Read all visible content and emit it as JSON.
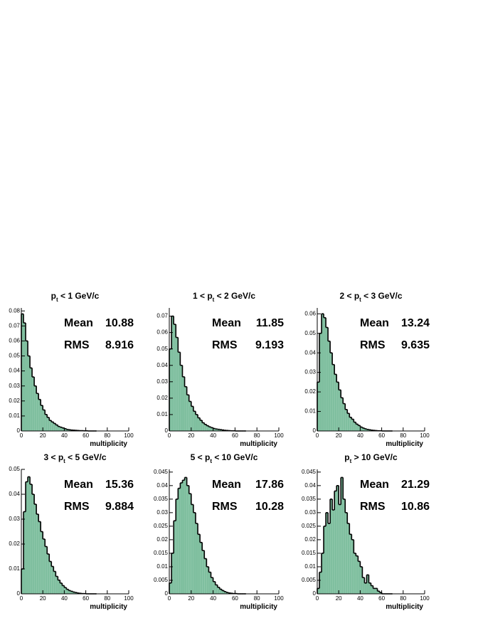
{
  "chart_data": [
    {
      "type": "histogram",
      "title": {
        "before": "p",
        "sub": "t",
        "after": " < 1 GeV/c"
      },
      "xlabel": "multiplicity",
      "stats": [
        {
          "label": "Mean",
          "value": 10.88
        },
        {
          "label": "RMS",
          "value": 8.916
        }
      ],
      "bins": [
        0,
        2,
        4,
        6,
        8,
        10,
        12,
        14,
        16,
        18,
        20,
        22,
        24,
        26,
        28,
        30,
        32,
        34,
        36,
        38,
        40,
        42,
        44,
        46,
        48,
        50,
        52,
        54,
        56,
        58,
        60,
        62,
        64,
        66,
        68,
        70
      ],
      "values": [
        0.078,
        0.072,
        0.06,
        0.05,
        0.042,
        0.036,
        0.03,
        0.025,
        0.021,
        0.017,
        0.014,
        0.011,
        0.009,
        0.007,
        0.006,
        0.005,
        0.004,
        0.003,
        0.0025,
        0.002,
        0.0015,
        0.001,
        0.0008,
        0.0006,
        0.0005,
        0.0004,
        0.0003,
        0.0002,
        0.0002,
        0.0001,
        0.0001,
        0,
        0,
        0,
        0
      ],
      "color": "#7fbf9f",
      "xlim": [
        0,
        100
      ],
      "xticks": [
        0,
        20,
        40,
        60,
        80,
        100
      ],
      "ylim": [
        0,
        0.082
      ],
      "yticks": [
        0,
        0.01,
        0.02,
        0.03,
        0.04,
        0.05,
        0.06,
        0.07,
        0.08
      ]
    },
    {
      "type": "histogram",
      "title": {
        "before": "1 < p",
        "sub": "t",
        "after": " < 2 GeV/c"
      },
      "xlabel": "multiplicity",
      "stats": [
        {
          "label": "Mean",
          "value": 11.85
        },
        {
          "label": "RMS",
          "value": 9.193
        }
      ],
      "bins": [
        0,
        2,
        4,
        6,
        8,
        10,
        12,
        14,
        16,
        18,
        20,
        22,
        24,
        26,
        28,
        30,
        32,
        34,
        36,
        38,
        40,
        42,
        44,
        46,
        48,
        50,
        52,
        54,
        56,
        58,
        60,
        62,
        64,
        66,
        68,
        70
      ],
      "values": [
        0.05,
        0.07,
        0.065,
        0.057,
        0.048,
        0.04,
        0.033,
        0.027,
        0.022,
        0.018,
        0.015,
        0.012,
        0.01,
        0.008,
        0.0065,
        0.005,
        0.004,
        0.0032,
        0.0025,
        0.002,
        0.0015,
        0.0012,
        0.001,
        0.0008,
        0.0006,
        0.0004,
        0.0003,
        0.0002,
        0.0001,
        0.0001,
        0,
        0,
        0,
        0,
        0
      ],
      "color": "#7fbf9f",
      "xlim": [
        0,
        100
      ],
      "xticks": [
        0,
        20,
        40,
        60,
        80,
        100
      ],
      "ylim": [
        0,
        0.075
      ],
      "yticks": [
        0,
        0.01,
        0.02,
        0.03,
        0.04,
        0.05,
        0.06,
        0.07
      ]
    },
    {
      "type": "histogram",
      "title": {
        "before": "2 < p",
        "sub": "t",
        "after": " < 3 GeV/c"
      },
      "xlabel": "multiplicity",
      "stats": [
        {
          "label": "Mean",
          "value": 13.24
        },
        {
          "label": "RMS",
          "value": 9.635
        }
      ],
      "bins": [
        0,
        2,
        4,
        6,
        8,
        10,
        12,
        14,
        16,
        18,
        20,
        22,
        24,
        26,
        28,
        30,
        32,
        34,
        36,
        38,
        40,
        42,
        44,
        46,
        48,
        50,
        52,
        54,
        56,
        58,
        60,
        62,
        64,
        66,
        68,
        70
      ],
      "values": [
        0.025,
        0.05,
        0.06,
        0.058,
        0.053,
        0.046,
        0.04,
        0.034,
        0.029,
        0.025,
        0.021,
        0.017,
        0.014,
        0.011,
        0.009,
        0.007,
        0.006,
        0.0045,
        0.0035,
        0.0028,
        0.002,
        0.0015,
        0.0011,
        0.0008,
        0.0006,
        0.0004,
        0.0003,
        0.0002,
        0.0001,
        0.0001,
        0,
        0,
        0,
        0,
        0
      ],
      "color": "#7fbf9f",
      "xlim": [
        0,
        100
      ],
      "xticks": [
        0,
        20,
        40,
        60,
        80,
        100
      ],
      "ylim": [
        0,
        0.063
      ],
      "yticks": [
        0,
        0.01,
        0.02,
        0.03,
        0.04,
        0.05,
        0.06
      ]
    },
    {
      "type": "histogram",
      "title": {
        "before": "3 < p",
        "sub": "t",
        "after": " < 5 GeV/c"
      },
      "xlabel": "multiplicity",
      "stats": [
        {
          "label": "Mean",
          "value": 15.36
        },
        {
          "label": "RMS",
          "value": 9.884
        }
      ],
      "bins": [
        0,
        2,
        4,
        6,
        8,
        10,
        12,
        14,
        16,
        18,
        20,
        22,
        24,
        26,
        28,
        30,
        32,
        34,
        36,
        38,
        40,
        42,
        44,
        46,
        48,
        50,
        52,
        54,
        56,
        58,
        60,
        62,
        64,
        66,
        68,
        70
      ],
      "values": [
        0.01,
        0.033,
        0.045,
        0.047,
        0.044,
        0.04,
        0.036,
        0.032,
        0.029,
        0.025,
        0.022,
        0.019,
        0.016,
        0.013,
        0.011,
        0.009,
        0.007,
        0.0055,
        0.0043,
        0.0033,
        0.0025,
        0.0018,
        0.0013,
        0.001,
        0.0007,
        0.0005,
        0.0003,
        0.0002,
        0.0001,
        0.0001,
        0,
        0,
        0,
        0,
        0
      ],
      "color": "#7fbf9f",
      "xlim": [
        0,
        100
      ],
      "xticks": [
        0,
        20,
        40,
        60,
        80,
        100
      ],
      "ylim": [
        0,
        0.05
      ],
      "yticks": [
        0,
        0.01,
        0.02,
        0.03,
        0.04,
        0.05
      ]
    },
    {
      "type": "histogram",
      "title": {
        "before": "5 < p",
        "sub": "t",
        "after": " < 10 GeV/c"
      },
      "xlabel": "multiplicity",
      "stats": [
        {
          "label": "Mean",
          "value": 17.86
        },
        {
          "label": "RMS",
          "value": 10.28
        }
      ],
      "bins": [
        0,
        2,
        4,
        6,
        8,
        10,
        12,
        14,
        16,
        18,
        20,
        22,
        24,
        26,
        28,
        30,
        32,
        34,
        36,
        38,
        40,
        42,
        44,
        46,
        48,
        50,
        52,
        54,
        56,
        58,
        60,
        62,
        64,
        66,
        68,
        70
      ],
      "values": [
        0.004,
        0.015,
        0.027,
        0.035,
        0.039,
        0.041,
        0.042,
        0.043,
        0.04,
        0.037,
        0.033,
        0.03,
        0.026,
        0.022,
        0.019,
        0.016,
        0.013,
        0.01,
        0.008,
        0.006,
        0.0045,
        0.0033,
        0.0024,
        0.0017,
        0.0012,
        0.0008,
        0.0005,
        0.0003,
        0.0002,
        0.0001,
        0.0001,
        0,
        0,
        0,
        0
      ],
      "color": "#7fbf9f",
      "xlim": [
        0,
        100
      ],
      "xticks": [
        0,
        20,
        40,
        60,
        80,
        100
      ],
      "ylim": [
        0,
        0.046
      ],
      "yticks": [
        0,
        0.005,
        0.01,
        0.015,
        0.02,
        0.025,
        0.03,
        0.035,
        0.04,
        0.045
      ]
    },
    {
      "type": "histogram",
      "title": {
        "before": "p",
        "sub": "t",
        "after": " > 10 GeV/c"
      },
      "xlabel": "multiplicity",
      "stats": [
        {
          "label": "Mean",
          "value": 21.29
        },
        {
          "label": "RMS",
          "value": 10.86
        }
      ],
      "bins": [
        0,
        2,
        4,
        6,
        8,
        10,
        12,
        14,
        16,
        18,
        20,
        22,
        24,
        26,
        28,
        30,
        32,
        34,
        36,
        38,
        40,
        42,
        44,
        46,
        48,
        50,
        52,
        54,
        56,
        58,
        60,
        62,
        64,
        66,
        68,
        70
      ],
      "values": [
        0.002,
        0.008,
        0.015,
        0.025,
        0.03,
        0.026,
        0.035,
        0.031,
        0.038,
        0.04,
        0.033,
        0.043,
        0.035,
        0.03,
        0.026,
        0.022,
        0.02,
        0.015,
        0.014,
        0.012,
        0.01,
        0.006,
        0.004,
        0.007,
        0.004,
        0.003,
        0.002,
        0.002,
        0.001,
        0.0005,
        0,
        0,
        0,
        0,
        0
      ],
      "color": "#7fbf9f",
      "xlim": [
        0,
        100
      ],
      "xticks": [
        0,
        20,
        40,
        60,
        80,
        100
      ],
      "ylim": [
        0,
        0.046
      ],
      "yticks": [
        0,
        0.005,
        0.01,
        0.015,
        0.02,
        0.025,
        0.03,
        0.035,
        0.04,
        0.045
      ]
    }
  ]
}
